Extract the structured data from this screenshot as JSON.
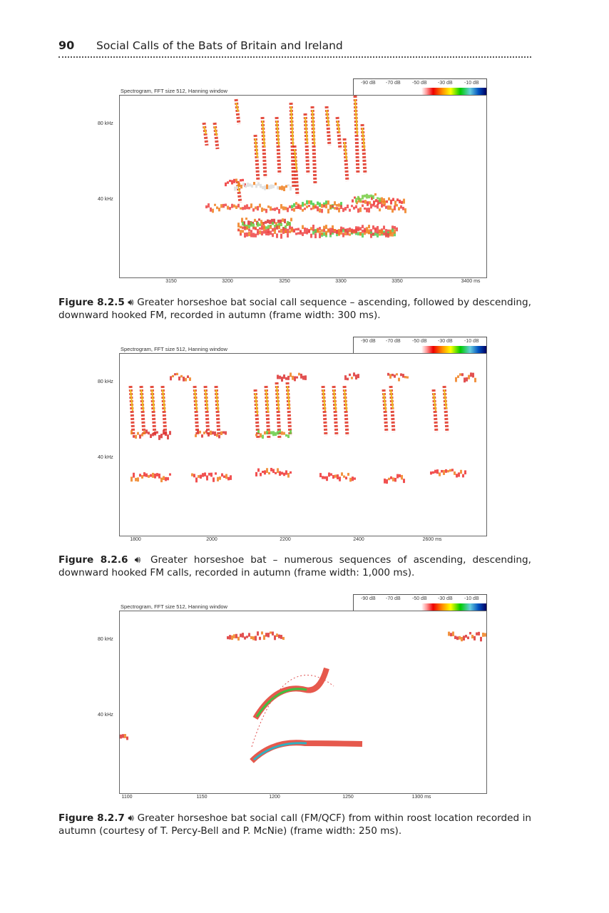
{
  "header": {
    "page_number": "90",
    "running_title": "Social Calls of the Bats of Britain and Ireland"
  },
  "figures": [
    {
      "spec_title": "Spectrogram, FFT size 512, Hanning window",
      "legend": [
        "-90 dB",
        "-70 dB",
        "-50 dB",
        "-30 dB",
        "-10 dB"
      ],
      "y_ticks": [
        "80 kHz",
        "40 kHz"
      ],
      "x_ticks": [
        "3150",
        "3200",
        "3250",
        "3300",
        "3350",
        "3400 ms"
      ],
      "caption_label": "Figure 8.2.5",
      "caption_text": "Greater horseshoe bat social call sequence – ascending, followed by descending, downward hooked FM, recorded in autumn (frame width: 300 ms)."
    },
    {
      "spec_title": "Spectrogram, FFT size 512, Hanning window",
      "legend": [
        "-90 dB",
        "-70 dB",
        "-50 dB",
        "-30 dB",
        "-10 dB"
      ],
      "y_ticks": [
        "80 kHz",
        "40 kHz"
      ],
      "x_ticks": [
        "1800",
        "2000",
        "2200",
        "2400",
        "2600 ms"
      ],
      "caption_label": "Figure 8.2.6",
      "caption_text": "Greater horseshoe bat – numerous sequences of ascending, descending, downward hooked FM calls, recorded in autumn (frame width: 1,000 ms)."
    },
    {
      "spec_title": "Spectrogram, FFT size 512, Hanning window",
      "legend": [
        "-90 dB",
        "-70 dB",
        "-50 dB",
        "-30 dB",
        "-10 dB"
      ],
      "y_ticks": [
        "80 kHz",
        "40 kHz"
      ],
      "x_ticks": [
        "1100",
        "1150",
        "1200",
        "1250",
        "1300 ms"
      ],
      "caption_label": "Figure 8.2.7",
      "caption_text": "Greater horseshoe bat social call (FM/QCF) from within roost location recorded in autumn (courtesy of T. Percy-Bell and P. McNie) (frame width: 250 ms)."
    }
  ],
  "icons": {
    "audio": "speaker-icon"
  },
  "colors": {
    "scale": [
      "#ff9999",
      "#e00000",
      "#ff8c00",
      "#ffff00",
      "#00c000",
      "#66ccdd",
      "#0050c0",
      "#000060"
    ]
  }
}
